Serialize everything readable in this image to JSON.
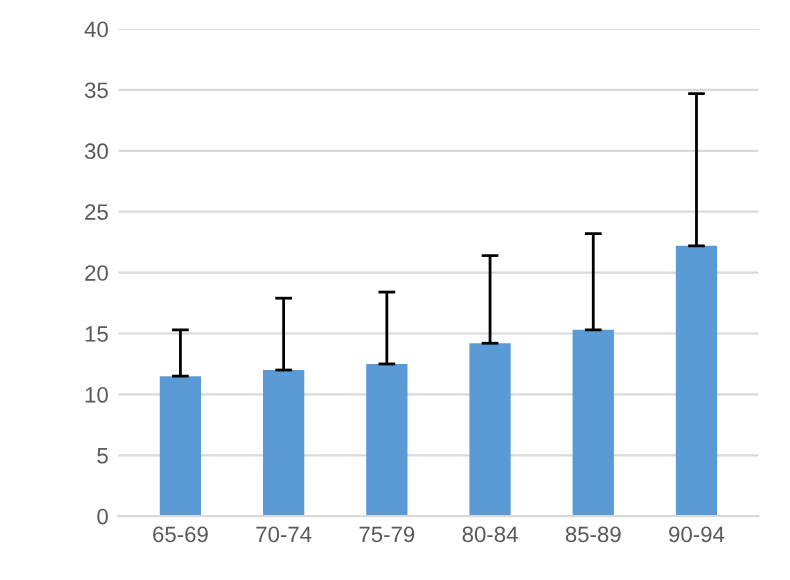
{
  "chart_data": {
    "type": "bar",
    "categories": [
      "65-69",
      "70-74",
      "75-79",
      "80-84",
      "85-89",
      "90-94"
    ],
    "values": [
      11.5,
      12.0,
      12.5,
      14.2,
      15.3,
      22.2
    ],
    "errors": [
      [
        11.5,
        15.3
      ],
      [
        12.0,
        17.9
      ],
      [
        12.5,
        18.4
      ],
      [
        14.2,
        21.4
      ],
      [
        15.3,
        23.2
      ],
      [
        22.2,
        34.7
      ]
    ],
    "color": "#5b9bd5",
    "ylim": [
      0,
      40
    ],
    "yticks": [
      0,
      5,
      10,
      15,
      20,
      25,
      30,
      35,
      40
    ],
    "grid": "y"
  }
}
